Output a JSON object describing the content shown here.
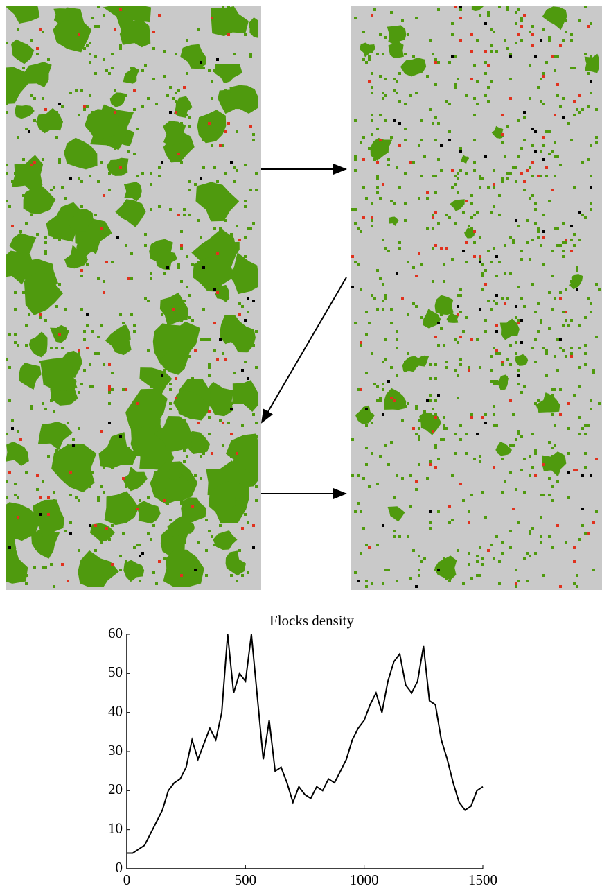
{
  "chart_data": {
    "type": "line",
    "title": "Flocks density",
    "x": [
      0,
      25,
      50,
      75,
      100,
      125,
      150,
      175,
      200,
      225,
      250,
      275,
      300,
      325,
      350,
      375,
      400,
      425,
      450,
      475,
      500,
      525,
      550,
      575,
      600,
      625,
      650,
      675,
      700,
      725,
      750,
      775,
      800,
      825,
      850,
      875,
      900,
      925,
      950,
      975,
      1000,
      1025,
      1050,
      1075,
      1100,
      1125,
      1150,
      1175,
      1200,
      1225,
      1250,
      1275,
      1300,
      1325,
      1350,
      1375,
      1400,
      1425,
      1450,
      1475,
      1500
    ],
    "values": [
      4,
      4,
      5,
      6,
      9,
      12,
      15,
      20,
      22,
      23,
      26,
      33,
      28,
      32,
      36,
      33,
      40,
      60,
      45,
      50,
      48,
      60,
      44,
      28,
      38,
      25,
      26,
      22,
      17,
      21,
      19,
      18,
      21,
      20,
      23,
      22,
      25,
      28,
      33,
      36,
      38,
      42,
      45,
      40,
      48,
      53,
      55,
      47,
      45,
      48,
      57,
      43,
      42,
      33,
      28,
      22,
      17,
      15,
      16,
      20,
      21
    ],
    "color": "#000000",
    "xlim": [
      0,
      1500
    ],
    "xticks": [
      0,
      500,
      1000,
      1500
    ],
    "ylim": [
      0,
      60
    ],
    "yticks": [
      0,
      10,
      20,
      30,
      40,
      50,
      60
    ]
  }
}
